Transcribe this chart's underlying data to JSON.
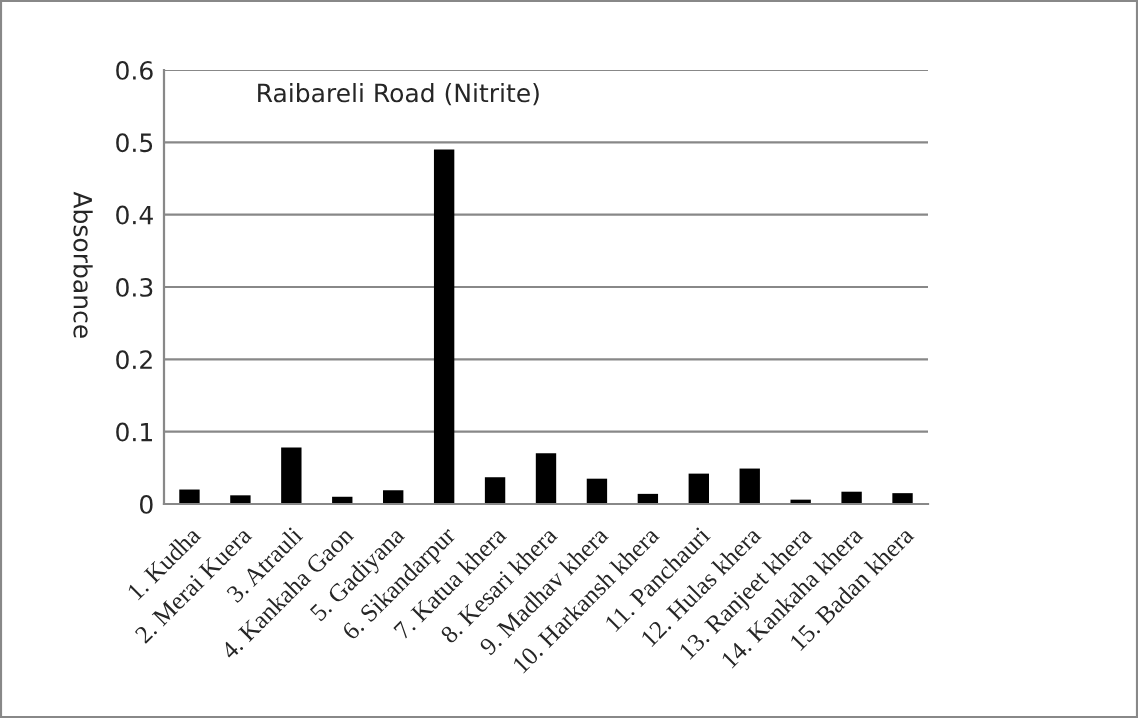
{
  "chart_data": {
    "type": "bar",
    "title": "Raibareli Road (Nitrite)",
    "ylabel": "Absorbance",
    "categories": [
      "1. Kudha",
      "2. Merai Kuera",
      "3. Atrauli",
      "4. Kankaha Gaon",
      "5. Gadiyana",
      "6. Sikandarpur",
      "7. Katua khera",
      "8. Kesari khera",
      "9. Madhav khera",
      "10. Harkansh khera",
      "11. Panchauri",
      "12. Hulas khera",
      "13. Ranjeet khera",
      "14. Kankaha khera",
      "15. Badan khera"
    ],
    "values": [
      0.02,
      0.012,
      0.078,
      0.01,
      0.019,
      0.49,
      0.037,
      0.07,
      0.035,
      0.014,
      0.042,
      0.049,
      0.006,
      0.017,
      0.015
    ],
    "color": "#000000",
    "ylim": [
      0,
      0.6
    ],
    "yticks": [
      0,
      0.1,
      0.2,
      0.3,
      0.4,
      0.5,
      0.6
    ],
    "grid": "y"
  }
}
